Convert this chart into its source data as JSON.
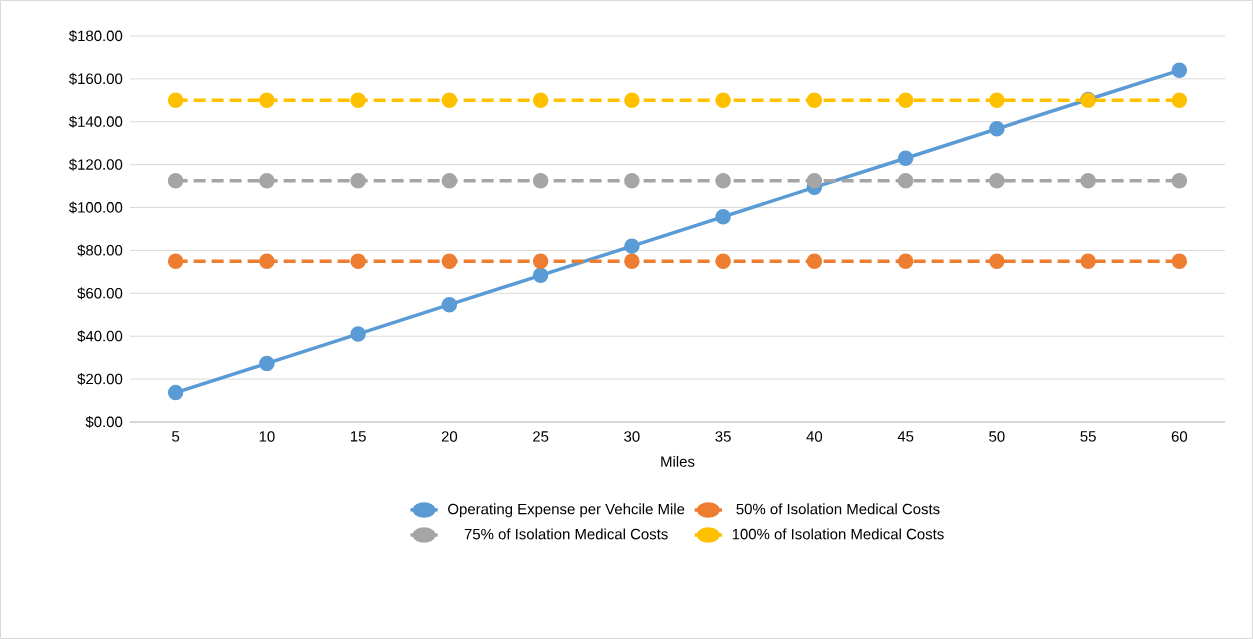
{
  "chart_data": {
    "type": "line",
    "xlabel": "Miles",
    "categories": [
      "5",
      "10",
      "15",
      "20",
      "25",
      "30",
      "35",
      "40",
      "45",
      "50",
      "55",
      "60"
    ],
    "series": [
      {
        "name": "Operating Expense per Vehcile Mile",
        "color": "#5b9bd5",
        "line_style": "solid",
        "values": [
          13.7,
          27.3,
          41.0,
          54.7,
          68.4,
          82.0,
          95.7,
          109.4,
          123.0,
          136.7,
          150.4,
          164.0
        ]
      },
      {
        "name": "50% of Isolation Medical Costs",
        "color": "#ed7d31",
        "line_style": "dashed",
        "values": [
          75,
          75,
          75,
          75,
          75,
          75,
          75,
          75,
          75,
          75,
          75,
          75
        ]
      },
      {
        "name": "75% of Isolation Medical Costs",
        "color": "#a5a5a5",
        "line_style": "dashed",
        "values": [
          112.5,
          112.5,
          112.5,
          112.5,
          112.5,
          112.5,
          112.5,
          112.5,
          112.5,
          112.5,
          112.5,
          112.5
        ]
      },
      {
        "name": "100% of Isolation Medical Costs",
        "color": "#ffc000",
        "line_style": "dashed",
        "values": [
          150,
          150,
          150,
          150,
          150,
          150,
          150,
          150,
          150,
          150,
          150,
          150
        ]
      }
    ],
    "ylim": [
      0,
      180
    ],
    "yticks": [
      {
        "value": 0,
        "label": "$0.00"
      },
      {
        "value": 20,
        "label": "$20.00"
      },
      {
        "value": 40,
        "label": "$40.00"
      },
      {
        "value": 60,
        "label": "$60.00"
      },
      {
        "value": 80,
        "label": "$80.00"
      },
      {
        "value": 100,
        "label": "$100.00"
      },
      {
        "value": 120,
        "label": "$120.00"
      },
      {
        "value": 140,
        "label": "$140.00"
      },
      {
        "value": 160,
        "label": "$160.00"
      },
      {
        "value": 180,
        "label": "$180.00"
      }
    ],
    "grid": "y",
    "legend": "bottom",
    "marker": "circle"
  }
}
